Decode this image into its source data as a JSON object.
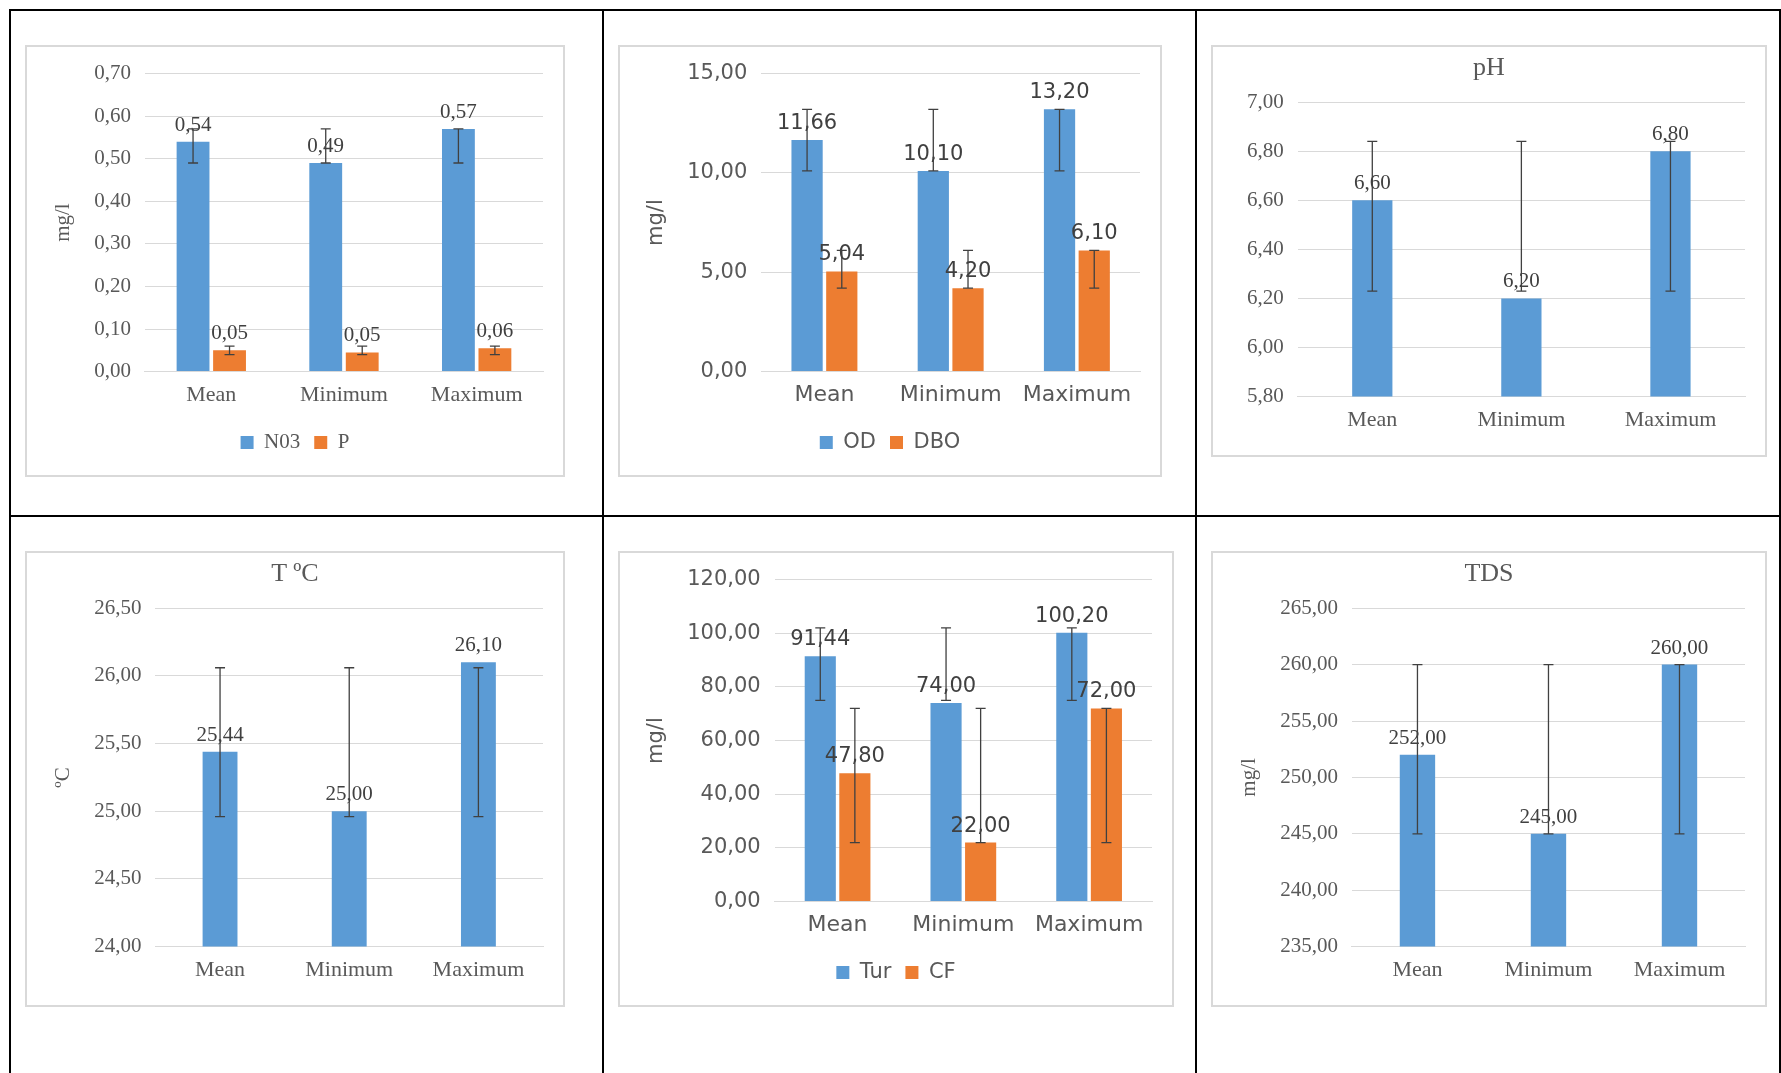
{
  "chart_data": [
    {
      "type": "bar",
      "ylabel": "mg/l",
      "categories": [
        "Mean",
        "Minimum",
        "Maximum"
      ],
      "legend": "bottom",
      "grid": "y",
      "ylim": [
        0,
        0.7
      ],
      "yticks": [
        {
          "value": 0,
          "label": "0,00"
        },
        {
          "value": 0.1,
          "label": "0,10"
        },
        {
          "value": 0.2,
          "label": "0,20"
        },
        {
          "value": 0.3,
          "label": "0,30"
        },
        {
          "value": 0.4,
          "label": "0,40"
        },
        {
          "value": 0.5,
          "label": "0,50"
        },
        {
          "value": 0.6,
          "label": "0,60"
        },
        {
          "value": 0.7,
          "label": "0,70"
        }
      ],
      "series": [
        {
          "name": "N03",
          "color": "#5b9bd5",
          "values": [
            0.54,
            0.49,
            0.57
          ],
          "value_labels": [
            "0,54",
            "0,49",
            "0,57"
          ],
          "errors": [
            [
              0.49,
              0.57
            ],
            [
              0.49,
              0.57
            ],
            [
              0.49,
              0.57
            ]
          ]
        },
        {
          "name": "P",
          "color": "#ed7d31",
          "values": [
            0.05,
            0.045,
            0.055
          ],
          "value_labels": [
            "0,05",
            "0,05",
            "0,06"
          ],
          "errors": [
            [
              0.04,
              0.06
            ],
            [
              0.04,
              0.06
            ],
            [
              0.04,
              0.06
            ]
          ]
        }
      ]
    },
    {
      "type": "bar",
      "ylabel": "mg/l",
      "categories": [
        "Mean",
        "Minimum",
        "Maximum"
      ],
      "legend": "bottom",
      "grid": "y",
      "ylim": [
        0,
        15
      ],
      "yticks": [
        {
          "value": 0,
          "label": "0,00"
        },
        {
          "value": 5,
          "label": "5,00"
        },
        {
          "value": 10,
          "label": "10,00"
        },
        {
          "value": 15,
          "label": "15,00"
        }
      ],
      "series": [
        {
          "name": "OD",
          "color": "#5b9bd5",
          "values": [
            11.66,
            10.1,
            13.2
          ],
          "value_labels": [
            "11,66",
            "10,10",
            "13,20"
          ],
          "errors": [
            [
              10.1,
              13.2
            ],
            [
              10.1,
              13.2
            ],
            [
              10.1,
              13.2
            ]
          ]
        },
        {
          "name": "DBO",
          "color": "#ed7d31",
          "values": [
            5.04,
            4.2,
            6.1
          ],
          "value_labels": [
            "5,04",
            "4,20",
            "6,10"
          ],
          "errors": [
            [
              4.2,
              6.1
            ],
            [
              4.2,
              6.1
            ],
            [
              4.2,
              6.1
            ]
          ]
        }
      ]
    },
    {
      "type": "bar",
      "title": "pH",
      "categories": [
        "Mean",
        "Minimum",
        "Maximum"
      ],
      "grid": "y",
      "ylim": [
        5.8,
        7.0
      ],
      "yticks": [
        {
          "value": 5.8,
          "label": "5,80"
        },
        {
          "value": 6.0,
          "label": "6,00"
        },
        {
          "value": 6.2,
          "label": "6,20"
        },
        {
          "value": 6.4,
          "label": "6,40"
        },
        {
          "value": 6.6,
          "label": "6,60"
        },
        {
          "value": 6.8,
          "label": "6,80"
        },
        {
          "value": 7.0,
          "label": "7,00"
        }
      ],
      "series": [
        {
          "color": "#5b9bd5",
          "values": [
            6.6,
            6.2,
            6.8
          ],
          "value_labels": [
            "6,60",
            "6,20",
            "6,80"
          ],
          "errors": [
            [
              6.23,
              6.84
            ],
            [
              6.23,
              6.84
            ],
            [
              6.23,
              6.84
            ]
          ]
        }
      ]
    },
    {
      "type": "bar",
      "title": "T ºC",
      "ylabel": "ºC",
      "categories": [
        "Mean",
        "Minimum",
        "Maximum"
      ],
      "grid": "y",
      "ylim": [
        24,
        26.5
      ],
      "yticks": [
        {
          "value": 24,
          "label": "24,00"
        },
        {
          "value": 24.5,
          "label": "24,50"
        },
        {
          "value": 25,
          "label": "25,00"
        },
        {
          "value": 25.5,
          "label": "25,50"
        },
        {
          "value": 26,
          "label": "26,00"
        },
        {
          "value": 26.5,
          "label": "26,50"
        }
      ],
      "series": [
        {
          "color": "#5b9bd5",
          "values": [
            25.44,
            25.0,
            26.1
          ],
          "value_labels": [
            "25,44",
            "25,00",
            "26,10"
          ],
          "errors": [
            [
              24.96,
              26.06
            ],
            [
              24.96,
              26.06
            ],
            [
              24.96,
              26.06
            ]
          ]
        }
      ]
    },
    {
      "type": "bar",
      "ylabel": "mg/l",
      "categories": [
        "Mean",
        "Minimum",
        "Maximum"
      ],
      "legend": "bottom",
      "grid": "y",
      "ylim": [
        0,
        120
      ],
      "yticks": [
        {
          "value": 0,
          "label": "0,00"
        },
        {
          "value": 20,
          "label": "20,00"
        },
        {
          "value": 40,
          "label": "40,00"
        },
        {
          "value": 60,
          "label": "60,00"
        },
        {
          "value": 80,
          "label": "80,00"
        },
        {
          "value": 100,
          "label": "100,00"
        },
        {
          "value": 120,
          "label": "120,00"
        }
      ],
      "series": [
        {
          "name": "Tur",
          "color": "#5b9bd5",
          "values": [
            91.44,
            74.0,
            100.2
          ],
          "value_labels": [
            "91,44",
            "74,00",
            "100,20"
          ],
          "errors": [
            [
              75,
              102
            ],
            [
              75,
              102
            ],
            [
              75,
              102
            ]
          ]
        },
        {
          "name": "CF",
          "color": "#ed7d31",
          "values": [
            47.8,
            22.0,
            72.0
          ],
          "value_labels": [
            "47,80",
            "22,00",
            "72,00"
          ],
          "errors": [
            [
              22,
              72
            ],
            [
              22,
              72
            ],
            [
              22,
              72
            ]
          ]
        }
      ]
    },
    {
      "type": "bar",
      "title": "TDS",
      "ylabel": "mg/l",
      "categories": [
        "Mean",
        "Minimum",
        "Maximum"
      ],
      "grid": "y",
      "ylim": [
        235,
        265
      ],
      "yticks": [
        {
          "value": 235,
          "label": "235,00"
        },
        {
          "value": 240,
          "label": "240,00"
        },
        {
          "value": 245,
          "label": "245,00"
        },
        {
          "value": 250,
          "label": "250,00"
        },
        {
          "value": 255,
          "label": "255,00"
        },
        {
          "value": 260,
          "label": "260,00"
        },
        {
          "value": 265,
          "label": "265,00"
        }
      ],
      "series": [
        {
          "color": "#5b9bd5",
          "values": [
            252,
            245,
            260
          ],
          "value_labels": [
            "252,00",
            "245,00",
            "260,00"
          ],
          "errors": [
            [
              245,
              260
            ],
            [
              245,
              260
            ],
            [
              245,
              260
            ]
          ]
        }
      ]
    }
  ]
}
